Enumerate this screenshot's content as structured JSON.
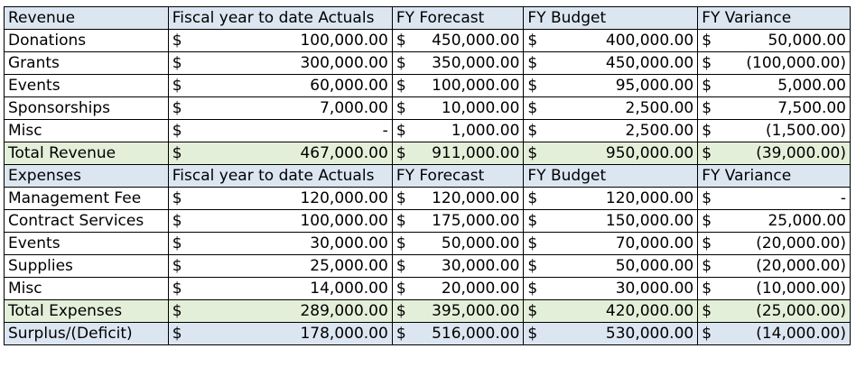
{
  "colors": {
    "header_fill": "#dce6f1",
    "total_fill": "#e4efd9",
    "net_fill": "#dce6f1",
    "border": "#000000"
  },
  "currency_symbol": "$",
  "revenue": {
    "header": [
      "Revenue",
      "Fiscal year to date Actuals",
      "FY Forecast",
      "FY Budget",
      "FY Variance"
    ],
    "rows": [
      {
        "label": "Donations",
        "actuals": "100,000.00",
        "forecast": "450,000.00",
        "budget": "400,000.00",
        "variance": "50,000.00"
      },
      {
        "label": "Grants",
        "actuals": "300,000.00",
        "forecast": "350,000.00",
        "budget": "450,000.00",
        "variance": "(100,000.00)"
      },
      {
        "label": "Events",
        "actuals": "60,000.00",
        "forecast": "100,000.00",
        "budget": "95,000.00",
        "variance": "5,000.00"
      },
      {
        "label": "Sponsorships",
        "actuals": "7,000.00",
        "forecast": "10,000.00",
        "budget": "2,500.00",
        "variance": "7,500.00"
      },
      {
        "label": "Misc",
        "actuals": "-",
        "forecast": "1,000.00",
        "budget": "2,500.00",
        "variance": "(1,500.00)"
      }
    ],
    "total": {
      "label": "Total Revenue",
      "actuals": "467,000.00",
      "forecast": "911,000.00",
      "budget": "950,000.00",
      "variance": "(39,000.00)"
    }
  },
  "expenses": {
    "header": [
      "Expenses",
      "Fiscal year to date Actuals",
      "FY Forecast",
      "FY Budget",
      "FY Variance"
    ],
    "rows": [
      {
        "label": "Management Fee",
        "actuals": "120,000.00",
        "forecast": "120,000.00",
        "budget": "120,000.00",
        "variance": "-"
      },
      {
        "label": "Contract Services",
        "actuals": "100,000.00",
        "forecast": "175,000.00",
        "budget": "150,000.00",
        "variance": "25,000.00"
      },
      {
        "label": "Events",
        "actuals": "30,000.00",
        "forecast": "50,000.00",
        "budget": "70,000.00",
        "variance": "(20,000.00)"
      },
      {
        "label": "Supplies",
        "actuals": "25,000.00",
        "forecast": "30,000.00",
        "budget": "50,000.00",
        "variance": "(20,000.00)"
      },
      {
        "label": "Misc",
        "actuals": "14,000.00",
        "forecast": "20,000.00",
        "budget": "30,000.00",
        "variance": "(10,000.00)"
      }
    ],
    "total": {
      "label": "Total Expenses",
      "actuals": "289,000.00",
      "forecast": "395,000.00",
      "budget": "420,000.00",
      "variance": "(25,000.00)"
    }
  },
  "net": {
    "label": "Surplus/(Deficit)",
    "actuals": "178,000.00",
    "forecast": "516,000.00",
    "budget": "530,000.00",
    "variance": "(14,000.00)"
  },
  "chart_data": {
    "type": "table",
    "columns": [
      "Fiscal year to date Actuals",
      "FY Forecast",
      "FY Budget",
      "FY Variance"
    ],
    "rows": [
      {
        "section": "Revenue",
        "label": "Donations",
        "values": [
          100000,
          450000,
          400000,
          50000
        ]
      },
      {
        "section": "Revenue",
        "label": "Grants",
        "values": [
          300000,
          350000,
          450000,
          -100000
        ]
      },
      {
        "section": "Revenue",
        "label": "Events",
        "values": [
          60000,
          100000,
          95000,
          5000
        ]
      },
      {
        "section": "Revenue",
        "label": "Sponsorships",
        "values": [
          7000,
          10000,
          2500,
          7500
        ]
      },
      {
        "section": "Revenue",
        "label": "Misc",
        "values": [
          0,
          1000,
          2500,
          -1500
        ]
      },
      {
        "section": "Revenue",
        "label": "Total Revenue",
        "values": [
          467000,
          911000,
          950000,
          -39000
        ]
      },
      {
        "section": "Expenses",
        "label": "Management Fee",
        "values": [
          120000,
          120000,
          120000,
          0
        ]
      },
      {
        "section": "Expenses",
        "label": "Contract Services",
        "values": [
          100000,
          175000,
          150000,
          25000
        ]
      },
      {
        "section": "Expenses",
        "label": "Events",
        "values": [
          30000,
          50000,
          70000,
          -20000
        ]
      },
      {
        "section": "Expenses",
        "label": "Supplies",
        "values": [
          25000,
          30000,
          50000,
          -20000
        ]
      },
      {
        "section": "Expenses",
        "label": "Misc",
        "values": [
          14000,
          20000,
          30000,
          -10000
        ]
      },
      {
        "section": "Expenses",
        "label": "Total Expenses",
        "values": [
          289000,
          395000,
          420000,
          -25000
        ]
      },
      {
        "section": "Net",
        "label": "Surplus/(Deficit)",
        "values": [
          178000,
          516000,
          530000,
          -14000
        ]
      }
    ]
  }
}
